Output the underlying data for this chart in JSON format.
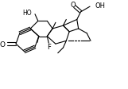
{
  "bg_color": "#ffffff",
  "line_color": "#000000",
  "bond_lw": 0.8,
  "figsize": [
    1.61,
    1.13
  ],
  "dpi": 100,
  "xlim": [
    0,
    161
  ],
  "ylim": [
    0,
    113
  ]
}
